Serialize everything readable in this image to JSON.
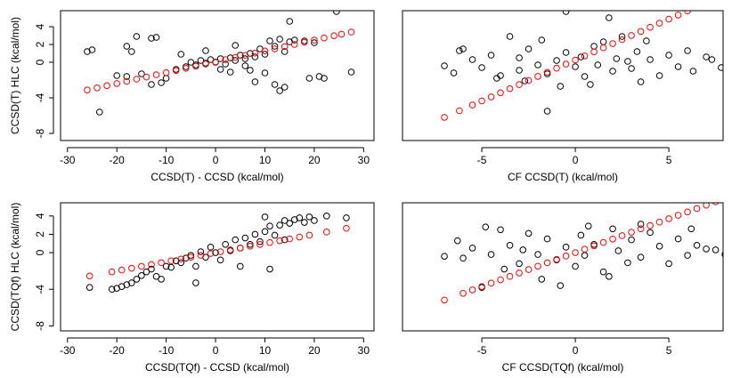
{
  "chart_data": [
    {
      "type": "scatter",
      "xlabel": "CCSD(T) - CCSD (kcal/mol)",
      "ylabel": "CCSD(T) HLC (kcal/mol)",
      "xlim": [
        -31.4,
        32.1
      ],
      "ylim": [
        -8.8,
        5.8
      ],
      "xticks": [
        -30,
        -20,
        -10,
        0,
        10,
        20,
        30
      ],
      "yticks": [
        -8,
        -4,
        0,
        2,
        4
      ],
      "series": [
        {
          "color": "#000000",
          "x": [
            -26,
            -25,
            -23.5,
            -18,
            -17,
            -16,
            -13,
            -12,
            -20,
            -18,
            -15,
            -13,
            -11,
            -10,
            -8,
            -6,
            -5,
            -4,
            -3,
            -2,
            -1,
            0,
            1,
            2,
            3,
            4,
            5,
            6,
            7,
            8,
            9,
            10,
            11,
            12,
            13,
            14,
            15,
            16,
            10,
            7,
            3,
            -2,
            4,
            15,
            24.5,
            19,
            21,
            22,
            27.5,
            13,
            12,
            14,
            8,
            -7,
            1,
            6,
            18,
            20
          ],
          "values": [
            1.2,
            1.4,
            -5.6,
            1.8,
            1.2,
            2.9,
            2.7,
            2.8,
            -1.5,
            -1.6,
            -1.3,
            -2.5,
            -2.3,
            -1.8,
            -0.8,
            -0.5,
            0,
            -0.3,
            0.2,
            -0.1,
            0.3,
            0,
            0.4,
            -0.2,
            0.5,
            0.2,
            0.8,
            0.4,
            1,
            0.6,
            1.5,
            0.9,
            2.4,
            1.8,
            2.6,
            1.2,
            2.3,
            2.5,
            -1.2,
            -0.9,
            -1.1,
            1.3,
            1.9,
            4.6,
            5.7,
            -1.8,
            -1.6,
            -1.8,
            -1.1,
            -3.2,
            -2.5,
            -2.8,
            -2.2,
            0.9,
            -0.8,
            -0.4,
            2.4,
            2.2
          ]
        },
        {
          "color": "#ff0000",
          "x": [
            -26,
            -24,
            -22,
            -20,
            -18,
            -16,
            -14,
            -12,
            -10,
            -8,
            -6,
            -4,
            -2,
            0,
            2,
            4,
            6,
            8,
            10,
            12,
            14,
            16,
            18,
            20,
            22,
            24,
            25.5,
            27.5
          ],
          "values": [
            -3.12,
            -2.88,
            -2.63,
            -2.39,
            -2.15,
            -1.9,
            -1.66,
            -1.41,
            -1.17,
            -0.93,
            -0.68,
            -0.44,
            -0.19,
            0.05,
            0.29,
            0.54,
            0.78,
            1.03,
            1.27,
            1.51,
            1.76,
            2,
            2.25,
            2.49,
            2.73,
            2.98,
            3.16,
            3.4
          ]
        }
      ]
    },
    {
      "type": "scatter",
      "xlabel": "CF CCSD(T) (kcal/mol)",
      "xlim": [
        -9.24,
        7.9
      ],
      "ylim": [
        -8.8,
        5.8
      ],
      "xticks": [
        -5,
        0,
        5
      ],
      "series": [
        {
          "color": "#000000",
          "x": [
            -6.2,
            -6,
            -7,
            -6.5,
            -5.5,
            -5,
            -4.5,
            -4,
            -3.5,
            -3,
            -2.7,
            -2.5,
            -2,
            -1.8,
            -1.5,
            -1,
            -0.8,
            -0.5,
            0,
            0.3,
            0.5,
            1,
            1.2,
            1.5,
            2,
            2.2,
            2.5,
            3,
            3.3,
            3.5,
            4,
            4.5,
            5,
            5.5,
            6,
            6.3,
            7,
            7.3,
            7.8,
            -1.5,
            -0.5,
            1.8,
            -4.2,
            3.8,
            0.8,
            -3,
            2.8
          ],
          "values": [
            1.3,
            1.5,
            -0.4,
            -1.2,
            0.3,
            -0.6,
            0.8,
            -1.5,
            2.9,
            0.5,
            -2.1,
            1.5,
            -0.3,
            2.5,
            -1.3,
            0.2,
            -2.7,
            1.1,
            -0.5,
            0.6,
            -1.6,
            1.8,
            -0.3,
            2.3,
            -1,
            0.4,
            2.9,
            -0.7,
            1.2,
            -2.2,
            0.3,
            -1.5,
            0.8,
            -0.5,
            1.3,
            -1,
            0.6,
            0.3,
            -0.6,
            -5.5,
            5.7,
            5,
            -1.8,
            2.4,
            -2.5,
            -0.9,
            0.1
          ]
        },
        {
          "color": "#ff0000",
          "x": [
            -7,
            -6.2,
            -5.5,
            -5,
            -4.5,
            -4,
            -3.5,
            -3,
            -2.5,
            -2,
            -1.5,
            -1,
            -0.5,
            0,
            0.5,
            1,
            1.5,
            2,
            2.5,
            3,
            3.5,
            4,
            4.5,
            5,
            5.5,
            6
          ],
          "values": [
            -6.19,
            -5.45,
            -4.81,
            -4.35,
            -3.89,
            -3.43,
            -2.97,
            -2.51,
            -2.05,
            -1.59,
            -1.13,
            -0.67,
            -0.21,
            0.25,
            0.71,
            1.17,
            1.63,
            2.09,
            2.55,
            3.01,
            3.47,
            3.93,
            4.39,
            4.85,
            5.31,
            5.77
          ]
        }
      ]
    },
    {
      "type": "scatter",
      "xlabel": "CCSD(TQf) - CCSD (kcal/mol)",
      "ylabel": "CCSD(TQf) HLC (kcal/mol)",
      "xlim": [
        -31.4,
        32.1
      ],
      "ylim": [
        -8.54,
        5.44
      ],
      "xticks": [
        -30,
        -20,
        -10,
        0,
        10,
        20,
        30
      ],
      "yticks": [
        -8,
        -4,
        0,
        2,
        4
      ],
      "series": [
        {
          "color": "#000000",
          "x": [
            -25.5,
            -21,
            -20,
            -19,
            -18,
            -17,
            -16,
            -15,
            -14,
            -13,
            -12,
            -11,
            -10,
            -9,
            -8,
            -7,
            -6,
            -5,
            -4,
            -3,
            -2,
            -1,
            0,
            1,
            2,
            3,
            4,
            5,
            6,
            7,
            8,
            9,
            10,
            11,
            12,
            13,
            14,
            15,
            16,
            17,
            18,
            19,
            20,
            22.5,
            26.5,
            10,
            11,
            -4,
            14,
            5
          ],
          "values": [
            -3.8,
            -4,
            -3.9,
            -3.7,
            -3.5,
            -3.3,
            -2.9,
            -2.5,
            -2.1,
            -1.8,
            -2.6,
            -2.9,
            -1.5,
            -1.6,
            -0.9,
            -1.1,
            -0.6,
            -0.3,
            -1.5,
            0.1,
            -0.5,
            0.6,
            0,
            -0.8,
            0.9,
            0.2,
            1.4,
            0.5,
            1.6,
            0.9,
            2,
            1.2,
            2.3,
            2.9,
            1.9,
            3,
            3.5,
            3.2,
            3.6,
            3.8,
            3.3,
            3.9,
            3.5,
            4,
            3.8,
            3.9,
            -1.8,
            -3.3,
            1.4,
            -1.5
          ]
        },
        {
          "color": "#ff0000",
          "x": [
            -25.5,
            -21,
            -19,
            -17,
            -15,
            -13,
            -11,
            -9,
            -7,
            -5,
            -3,
            -1,
            1,
            3,
            5,
            7,
            9,
            11,
            13,
            15,
            17,
            19,
            22.5,
            26.5
          ],
          "values": [
            -2.55,
            -2.1,
            -1.9,
            -1.7,
            -1.5,
            -1.3,
            -1.1,
            -0.9,
            -0.7,
            -0.5,
            -0.3,
            -0.1,
            0.1,
            0.3,
            0.5,
            0.7,
            0.9,
            1.1,
            1.3,
            1.5,
            1.7,
            1.9,
            2.25,
            2.65
          ]
        }
      ]
    },
    {
      "type": "scatter",
      "xlabel": "CF CCSD(TQf) (kcal/mol)",
      "xlim": [
        -9.24,
        7.9
      ],
      "ylim": [
        -8.54,
        5.44
      ],
      "xticks": [
        -5,
        0,
        5
      ],
      "series": [
        {
          "color": "#000000",
          "x": [
            -7,
            -6.3,
            -6,
            -5.5,
            -5,
            -4.5,
            -4,
            -3.8,
            -3.5,
            -3,
            -2.5,
            -2,
            -1.8,
            -1.5,
            -1,
            -0.5,
            0,
            0.3,
            0.5,
            1,
            1.5,
            2,
            2.3,
            2.8,
            3,
            3.5,
            4,
            4.5,
            5,
            5.5,
            6,
            6.5,
            7,
            7.5,
            8,
            -4.8,
            3.5,
            -0.8,
            1.8,
            -2.8,
            0.7,
            6.2
          ],
          "values": [
            -0.4,
            1.3,
            -0.6,
            0.5,
            -3.8,
            -0.2,
            2.5,
            -1.8,
            0.8,
            -1.2,
            2.1,
            -0.2,
            -2.9,
            1.5,
            -0.8,
            0.6,
            -1.5,
            1.9,
            -0.3,
            0.9,
            -2.1,
            2.6,
            0.2,
            -1.1,
            1.4,
            -0.5,
            2.2,
            0.7,
            -1.2,
            1.5,
            -0.3,
            0.8,
            0.4,
            0.3,
            -0.2,
            2.8,
            3.1,
            -3.6,
            -2.6,
            0.3,
            2.9,
            2.6
          ]
        },
        {
          "color": "#ff0000",
          "x": [
            -7,
            -6,
            -5.5,
            -5,
            -4.5,
            -4,
            -3.5,
            -3,
            -2.5,
            -2,
            -1.5,
            -1,
            -0.5,
            0,
            0.5,
            1,
            1.5,
            2,
            2.5,
            3,
            3.5,
            4,
            4.5,
            5,
            5.5,
            6,
            6.5,
            7,
            7.5
          ],
          "values": [
            -5.18,
            -4.44,
            -4.07,
            -3.7,
            -3.33,
            -2.96,
            -2.59,
            -2.22,
            -1.85,
            -1.48,
            -1.11,
            -0.74,
            -0.37,
            0,
            0.37,
            0.74,
            1.11,
            1.48,
            1.85,
            2.22,
            2.59,
            2.96,
            3.33,
            3.7,
            4.07,
            4.44,
            4.81,
            5.18,
            5.55
          ]
        }
      ]
    }
  ]
}
